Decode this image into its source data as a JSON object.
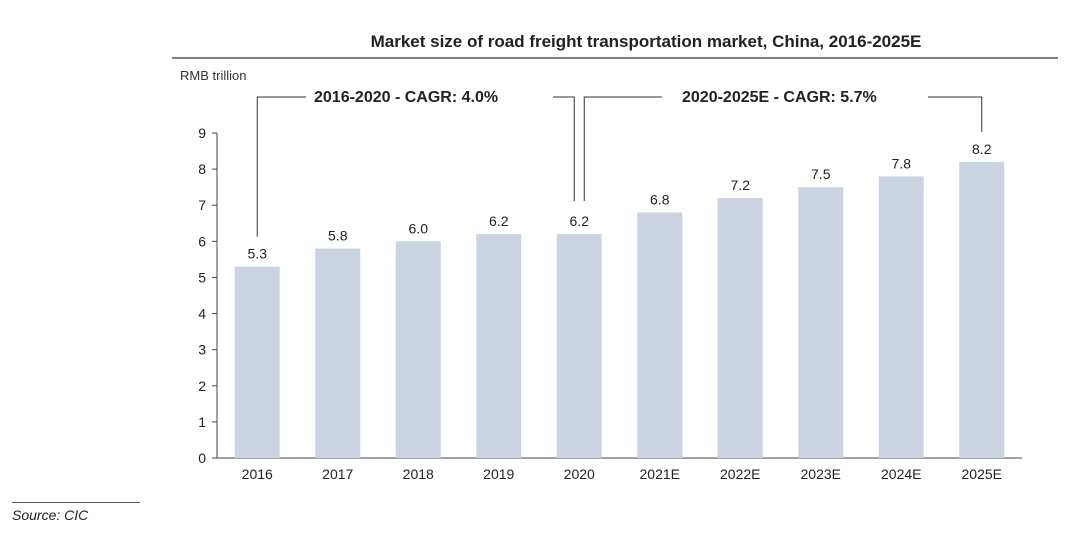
{
  "chart_data": {
    "type": "bar",
    "title": "Market size of road freight transportation market, China, 2016-2025E",
    "ylabel": "RMB trillion",
    "xlabel": "",
    "categories": [
      "2016",
      "2017",
      "2018",
      "2019",
      "2020",
      "2021E",
      "2022E",
      "2023E",
      "2024E",
      "2025E"
    ],
    "values": [
      5.3,
      5.8,
      6.0,
      6.2,
      6.2,
      6.8,
      7.2,
      7.5,
      7.8,
      8.2
    ],
    "value_labels": [
      "5.3",
      "5.8",
      "6.0",
      "6.2",
      "6.2",
      "6.8",
      "7.2",
      "7.5",
      "7.8",
      "8.2"
    ],
    "ylim": [
      0,
      9
    ],
    "yticks": [
      0,
      1,
      2,
      3,
      4,
      5,
      6,
      7,
      8,
      9
    ],
    "grid": false,
    "bar_color": "#c9d3e2",
    "annotations": [
      {
        "text": "2016-2020 - CAGR: 4.0%",
        "from": "2016",
        "to": "2020"
      },
      {
        "text": "2020-2025E - CAGR: 5.7%",
        "from": "2020",
        "to": "2025E"
      }
    ]
  },
  "footer": {
    "source": "Source: CIC"
  }
}
